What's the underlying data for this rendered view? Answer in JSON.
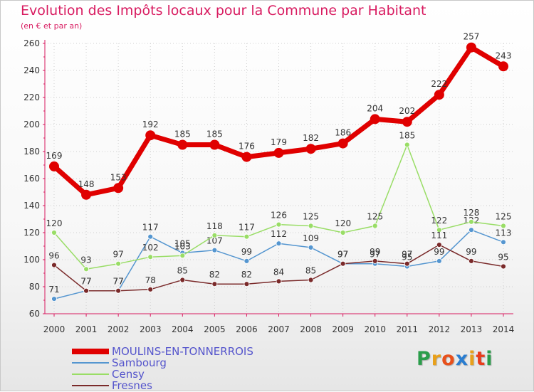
{
  "header": {
    "title": "Evolution des Impôts locaux pour la Commune par Habitant",
    "subtitle": "(en € et par an)"
  },
  "brand": {
    "letters": [
      "P",
      "r",
      "o",
      "x",
      "i",
      "t",
      "i"
    ],
    "colors": [
      "#2a9d4a",
      "#e8a01b",
      "#e8501b",
      "#2a7dd0",
      "#e8a01b",
      "#e83c1b",
      "#2a9d4a"
    ]
  },
  "chart_data": {
    "type": "line",
    "title": "Evolution des Impôts locaux pour la Commune par Habitant",
    "xlabel": "",
    "ylabel": "(en € et par an)",
    "x": [
      "2000",
      "2001",
      "2002",
      "2003",
      "2004",
      "2005",
      "2006",
      "2007",
      "2008",
      "2009",
      "2010",
      "2011",
      "2012",
      "2013",
      "2014"
    ],
    "ylim": [
      60,
      260
    ],
    "yticks": [
      60,
      80,
      100,
      120,
      140,
      160,
      180,
      200,
      220,
      240,
      260
    ],
    "grid": true,
    "legend_position": "bottom-left",
    "series": [
      {
        "name": "MOULINS-EN-TONNERROIS",
        "color": "#e00000",
        "emphasis": true,
        "values": [
          169,
          148,
          153,
          192,
          185,
          185,
          176,
          179,
          182,
          186,
          204,
          202,
          222,
          257,
          243
        ]
      },
      {
        "name": "Sambourg",
        "color": "#5596d0",
        "emphasis": false,
        "values": [
          71,
          77,
          77,
          117,
          105,
          107,
          99,
          112,
          109,
          97,
          97,
          95,
          99,
          122,
          113
        ]
      },
      {
        "name": "Censy",
        "color": "#99dd66",
        "emphasis": false,
        "values": [
          120,
          93,
          97,
          102,
          103,
          118,
          117,
          126,
          125,
          120,
          125,
          185,
          122,
          128,
          125
        ]
      },
      {
        "name": "Fresnes",
        "color": "#7a2a2a",
        "emphasis": false,
        "values": [
          96,
          77,
          77,
          78,
          85,
          82,
          82,
          84,
          85,
          97,
          99,
          97,
          111,
          99,
          95
        ]
      }
    ]
  }
}
